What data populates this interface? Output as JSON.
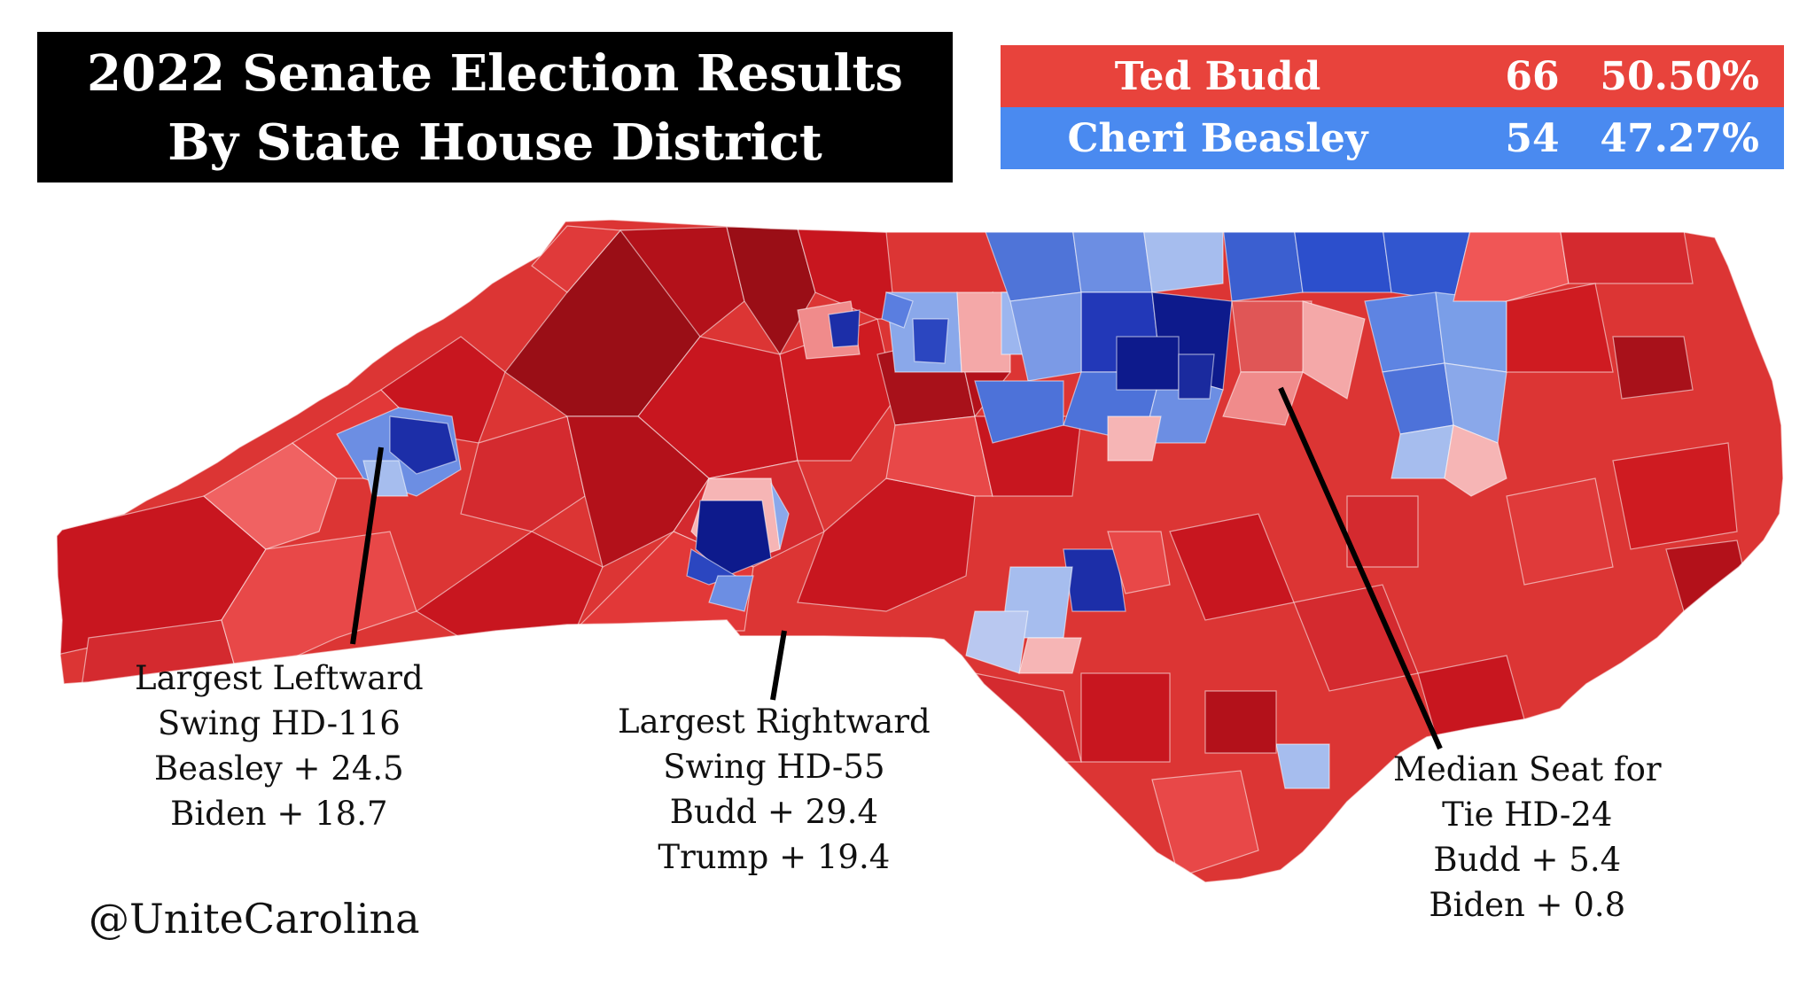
{
  "title": {
    "line1": "2022 Senate Election Results",
    "line2": "By State House District"
  },
  "results": [
    {
      "name": "Ted Budd",
      "seats": "66",
      "percent": "50.50%",
      "color": "#e8433c"
    },
    {
      "name": "Cheri Beasley",
      "seats": "54",
      "percent": "47.27%",
      "color": "#4a8af0"
    }
  ],
  "colors": {
    "dem_dark": "#0d1a8c",
    "dem_mid": "#4d72d9",
    "dem_light": "#9fb8ef",
    "rep_dark": "#9a0e16",
    "rep_mid": "#cf1b21",
    "rep_light": "#f07a7a"
  },
  "callouts": {
    "leftward": {
      "lines": [
        "Largest Leftward",
        "Swing HD-116",
        "Beasley + 24.5",
        "Biden + 18.7"
      ]
    },
    "rightward": {
      "lines": [
        "Largest Rightward",
        "Swing HD-55",
        "Budd + 29.4",
        "Trump + 19.4"
      ]
    },
    "median": {
      "lines": [
        "Median Seat for",
        "Tie HD-24",
        "Budd + 5.4",
        "Biden + 0.8"
      ]
    }
  },
  "credit": "@UniteCarolina"
}
